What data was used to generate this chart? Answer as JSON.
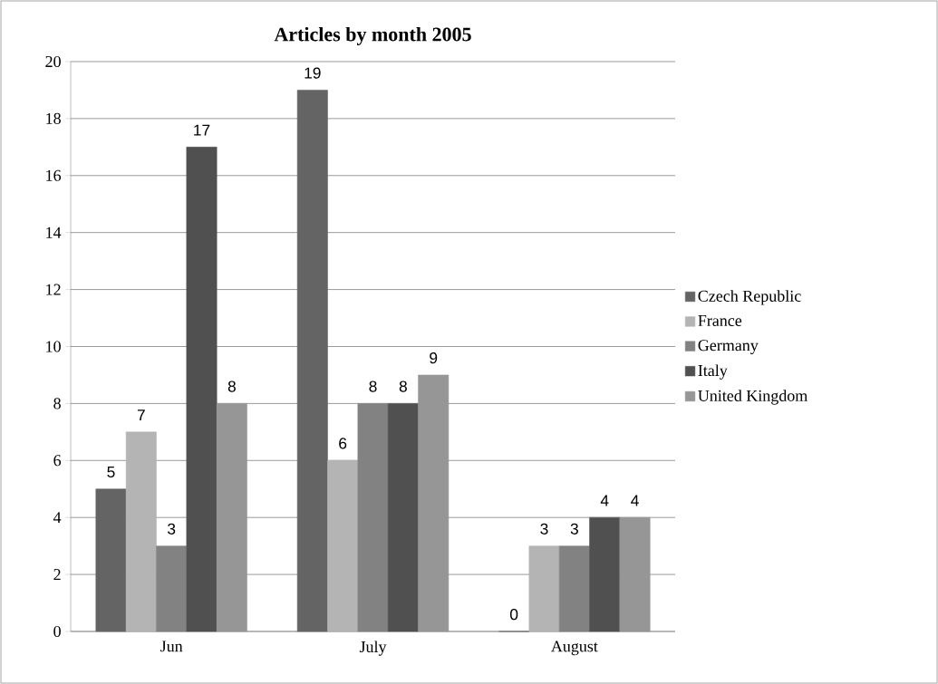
{
  "chart_data": {
    "type": "bar",
    "title": "Articles by month 2005",
    "categories": [
      "Jun",
      "July",
      "August"
    ],
    "series": [
      {
        "name": "Czech Republic",
        "color": "#646464",
        "values": [
          5,
          19,
          0
        ]
      },
      {
        "name": "France",
        "color": "#b4b4b4",
        "values": [
          7,
          6,
          3
        ]
      },
      {
        "name": "Germany",
        "color": "#828282",
        "values": [
          3,
          8,
          3
        ]
      },
      {
        "name": "Italy",
        "color": "#505050",
        "values": [
          17,
          8,
          4
        ]
      },
      {
        "name": "United Kingdom",
        "color": "#969696",
        "values": [
          8,
          9,
          4
        ]
      }
    ],
    "ylim": [
      0,
      20
    ],
    "yticks": [
      0,
      2,
      4,
      6,
      8,
      10,
      12,
      14,
      16,
      18,
      20
    ],
    "grid": "y",
    "legend": "right",
    "data_labels": true
  }
}
